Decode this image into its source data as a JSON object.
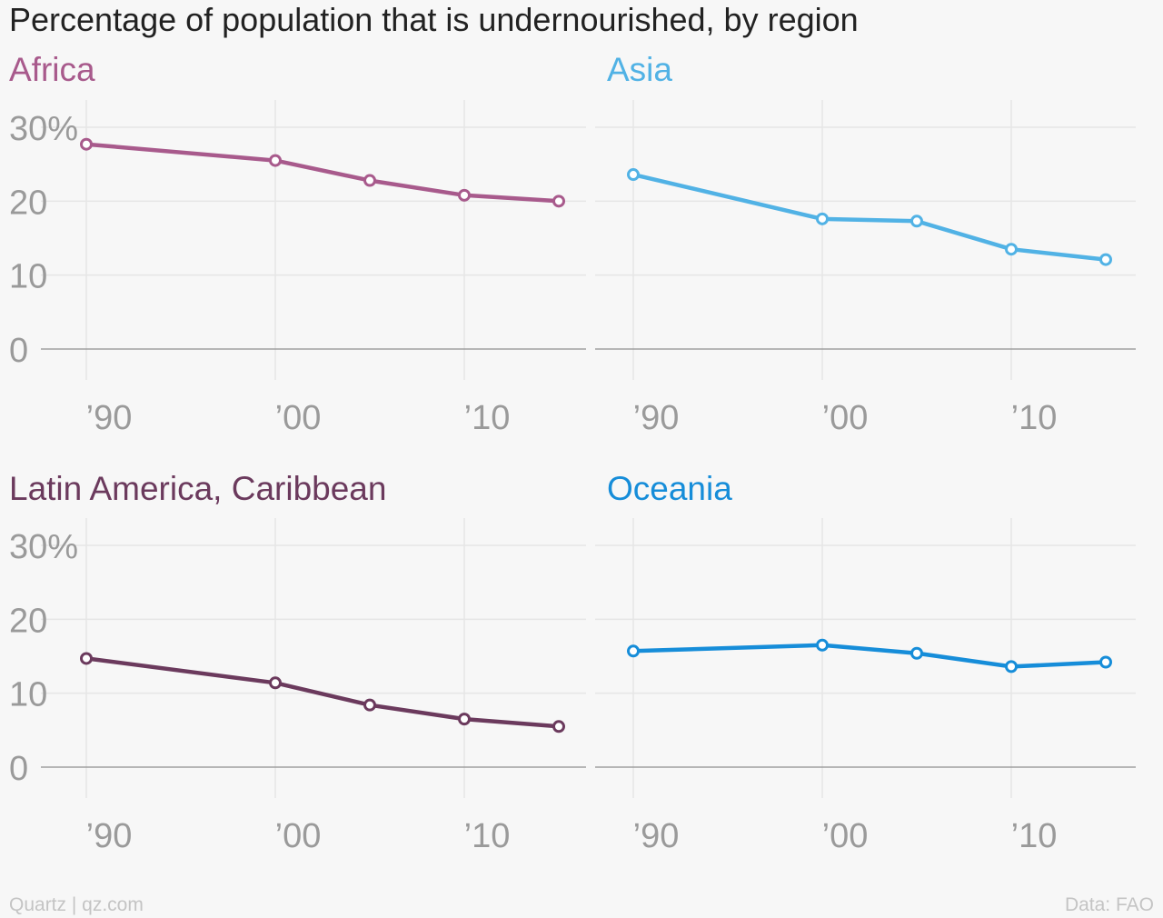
{
  "title": "Percentage of population that is undernourished, by region",
  "footer": {
    "source": "Quartz | qz.com",
    "data": "Data: FAO"
  },
  "chart_data": {
    "type": "line",
    "title": "Percentage of population that is undernourished, by region",
    "x": [
      1990,
      2000,
      2005,
      2010,
      2015
    ],
    "xlim": [
      1990,
      2016
    ],
    "ylim": [
      0,
      30
    ],
    "x_ticks": [
      1990,
      2000,
      2010
    ],
    "x_tick_labels": [
      "’90",
      "’00",
      "’10"
    ],
    "y_ticks": [
      0,
      10,
      20,
      30
    ],
    "y_tick_labels": [
      "0",
      "10",
      "20",
      "30%"
    ],
    "grid": true,
    "panels": [
      {
        "name": "Africa",
        "color": "#a85a8c",
        "values": [
          27.7,
          25.5,
          22.8,
          20.8,
          20.0
        ]
      },
      {
        "name": "Asia",
        "color": "#51b2e5",
        "values": [
          23.6,
          17.6,
          17.3,
          13.5,
          12.1
        ]
      },
      {
        "name": "Latin America, Caribbean",
        "color": "#6b3a5d",
        "values": [
          14.7,
          11.4,
          8.4,
          6.5,
          5.5
        ]
      },
      {
        "name": "Oceania",
        "color": "#168dd9",
        "values": [
          15.7,
          16.5,
          15.4,
          13.6,
          14.2
        ]
      }
    ]
  }
}
